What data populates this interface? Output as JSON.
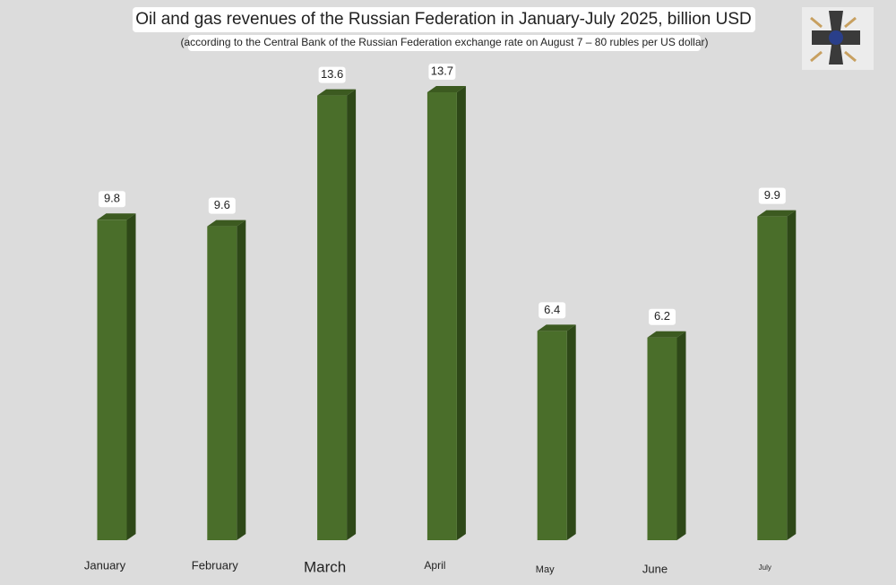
{
  "chart_data": {
    "type": "bar3d",
    "title": "Oil and gas revenues of the Russian Federation in January-July 2025, billion USD",
    "subtitle": "(according to the Central Bank of the Russian Federation exchange rate on August 7 – 80 rubles per US dollar)",
    "categories": [
      "January",
      "February",
      "March",
      "April",
      "May",
      "June",
      "July"
    ],
    "values": [
      9.8,
      9.6,
      13.6,
      13.7,
      6.4,
      6.2,
      9.9
    ],
    "color": "#4a6e2a"
  }
}
